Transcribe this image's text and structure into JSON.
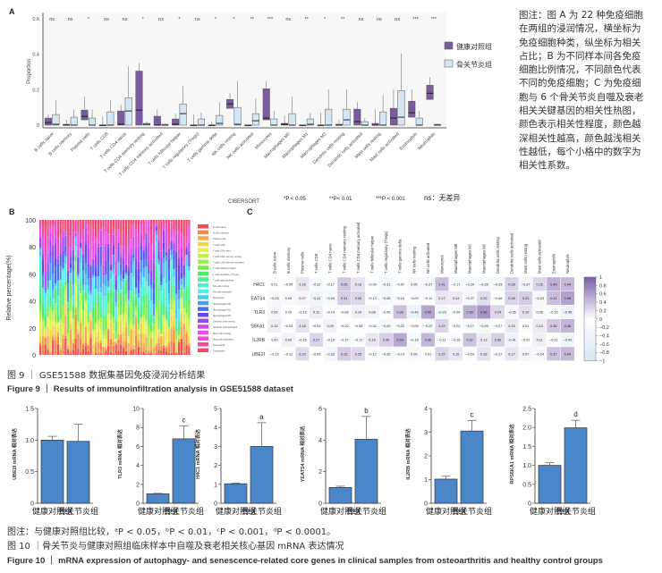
{
  "side_note": "图注：图 A 为 22 种免疫细胞在两组的浸润情况，横坐标为免疫细胞种类，纵坐标为相关占比；B 为不同样本间各免疫细胞比例情况，不同颜色代表不同的免疫细胞；C 为免疫细胞与 6 个骨关节炎自噬及衰老相关关键基因的相关性热图，颜色表示相关性程度，颜色越深相关性越高，颜色越浅相关性越低，每个小格中的数字为相关性系数。",
  "fig9": {
    "cn": "图 9 ｜ GSE51588 数据集基因免疫浸润分析结果",
    "en": "Figure 9  ｜  Results of immunoinfiltration analysis in GSE51588 dataset"
  },
  "fig10": {
    "note": "图注：与健康对照组比较，ᵃP < 0.05，ᵇP < 0.01，ᶜP < 0.001，ᵈP < 0.0001。",
    "cn": "图 10 ｜骨关节炎与健康对照组临床样本中自噬及衰老相关核心基因 mRNA 表达情况",
    "en": "Figure 10  ｜ mRNA expression of autophagy- and senescence-related core genes in clinical samples from osteoarthritis and healthy control groups"
  },
  "colors": {
    "healthy": "#7a5c9e",
    "oa": "#d4e6f4",
    "bar": "#4a86c8",
    "heat_pos": "#7b5ea7",
    "heat_neg": "#d6e6f2"
  },
  "chart_data": [
    {
      "type": "box",
      "panel": "A",
      "ylabel": "Proportion",
      "ylim": [
        0,
        0.6
      ],
      "yticks": [
        "0",
        "0.2",
        "0.4",
        "0.6"
      ],
      "legend": [
        "健康对照组",
        "骨关节炎组"
      ],
      "legend_position": "right",
      "footer": {
        "method": "CIBERSORT",
        "p1": "*P < 0.05",
        "p2": "**P< 0.01",
        "p3": "***P < 0.001",
        "ns": "ns：无差异"
      },
      "categories": [
        "B cells naive",
        "B cells memory",
        "Plasma cells",
        "T cells CD8",
        "T cells CD4 naive",
        "T cells CD4 memory resting",
        "T cells CD4 memory activated",
        "T cells follicular helper",
        "T cells regulatory (Tregs)",
        "T cells gamma delta",
        "NK cells resting",
        "NK cells activated",
        "Monocytes",
        "Macrophages M0",
        "Macrophages M1",
        "Macrophages M2",
        "Dendritic cells resting",
        "Dendritic cells activated",
        "Mast cells resting",
        "Mast cells activated",
        "Eosinophils",
        "Neutrophils"
      ],
      "significance": [
        "ns",
        "ns",
        "*",
        "ns",
        "ns",
        "*",
        "ns",
        "*",
        "ns",
        "*",
        "*",
        "**",
        "***",
        "ns",
        "**",
        "*",
        "**",
        "ns",
        "ns",
        "ns",
        "***",
        "***"
      ],
      "series": [
        {
          "name": "健康对照组",
          "boxes_q1_med_q3_max": [
            [
              0,
              0.015,
              0.04,
              0.06
            ],
            [
              0,
              0,
              0.005,
              0.03
            ],
            [
              0.03,
              0.05,
              0.085,
              0.16
            ],
            [
              0,
              0,
              0,
              0.05
            ],
            [
              0,
              0.005,
              0.08,
              0.115
            ],
            [
              0,
              0.085,
              0.305,
              0.35
            ],
            [
              0,
              0,
              0.05,
              0.09
            ],
            [
              0,
              0.005,
              0.035,
              0.065
            ],
            [
              0,
              0,
              0,
              0.06
            ],
            [
              0,
              0,
              0,
              0.02
            ],
            [
              0.095,
              0.12,
              0.145,
              0.18
            ],
            [
              0,
              0,
              0,
              0
            ],
            [
              0.03,
              0.04,
              0.205,
              0.25
            ],
            [
              0,
              0.005,
              0.01,
              0.055
            ],
            [
              0,
              0,
              0,
              0
            ],
            [
              0,
              0,
              0,
              0.07
            ],
            [
              0,
              0,
              0.005,
              0.03
            ],
            [
              0,
              0.02,
              0.09,
              0.13
            ],
            [
              0,
              0,
              0.01,
              0.09
            ],
            [
              0,
              0.04,
              0.095,
              0.2
            ],
            [
              0.045,
              0.07,
              0.135,
              0.2
            ],
            [
              0.145,
              0.18,
              0.225,
              0.27
            ]
          ]
        },
        {
          "name": "骨关节炎组",
          "boxes_q1_med_q3_max": [
            [
              0,
              0.005,
              0.06,
              0.14
            ],
            [
              0,
              0,
              0.045,
              0.09
            ],
            [
              0,
              0,
              0.04,
              0.09
            ],
            [
              0,
              0,
              0.075,
              0.14
            ],
            [
              0,
              0.08,
              0.155,
              0.33
            ],
            [
              0,
              0.005,
              0.01,
              0.02
            ],
            [
              0,
              0,
              0.005,
              0.01
            ],
            [
              0,
              0.065,
              0.12,
              0.22
            ],
            [
              0,
              0,
              0.035,
              0.07
            ],
            [
              0,
              0.01,
              0.055,
              0.13
            ],
            [
              0,
              0.005,
              0.1,
              0.25
            ],
            [
              0,
              0.025,
              0.065,
              0.15
            ],
            [
              0,
              0,
              0.035,
              0.08
            ],
            [
              0,
              0,
              0.065,
              0.16
            ],
            [
              0,
              0.005,
              0.035,
              0.07
            ],
            [
              0,
              0,
              0.09,
              0.2
            ],
            [
              0,
              0.03,
              0.09,
              0.2
            ],
            [
              0,
              0,
              0.02,
              0.04
            ],
            [
              0,
              0,
              0.075,
              0.17
            ],
            [
              0,
              0.045,
              0.195,
              0.405
            ],
            [
              0,
              0,
              0.04,
              0.08
            ],
            [
              0,
              0,
              0.005,
              0.01
            ]
          ]
        }
      ]
    },
    {
      "type": "stacked-bar",
      "panel": "B",
      "ylabel": "Relative percentage(%)",
      "ylim": [
        0,
        100
      ],
      "yticks": [
        "0",
        "20",
        "40",
        "60",
        "80",
        "100"
      ],
      "samples": 60,
      "seed": 51588,
      "legend_colors": [
        "#f24d4d",
        "#f5874a",
        "#f5aa4a",
        "#f5d24a",
        "#e8f04a",
        "#c8ef4a",
        "#9cf04a",
        "#6ef04a",
        "#4af064",
        "#4af096",
        "#4af0c8",
        "#4af0f0",
        "#4ac8f0",
        "#4a9cf0",
        "#4a6ef0",
        "#644af0",
        "#964af0",
        "#c84af0",
        "#f04af0",
        "#f04ac8",
        "#f04a96",
        "#f04a6e"
      ]
    },
    {
      "type": "heatmap",
      "panel": "C",
      "rows": [
        "H4C1",
        "YEATS4",
        "TLR3",
        "RPS6KA1",
        "IL2RB",
        "UBE2I"
      ],
      "columns": [
        "B cells naive",
        "B cells memory",
        "Plasma cells",
        "T cells CD8",
        "T cells CD4 naive",
        "T cells CD4 memory resting",
        "T cells CD4 memory activated",
        "T cells follicular helper",
        "T cells regulatory (Tregs)",
        "T cells gamma delta",
        "NK cells resting",
        "NK cells activated",
        "Monocytes",
        "Macrophages M0",
        "Macrophages M1",
        "Macrophages M2",
        "Dendritic cells resting",
        "Dendritic cells activated",
        "Mast cells resting",
        "Mast cells activated",
        "Eosinophils",
        "Neutrophils"
      ],
      "values": [
        [
          0.01,
          -0.06,
          0.16,
          -0.22,
          -0.17,
          0.35,
          0.18,
          -0.09,
          -0.31,
          -0.07,
          0.05,
          -0.27,
          0.41,
          -0.17,
          -0.24,
          -0.28,
          -0.29,
          0.28,
          -0.37,
          0.26,
          0.49,
          0.44
        ],
        [
          -0.23,
          0.05,
          0.07,
          -0.41,
          -0.29,
          0.31,
          0.26,
          -0.13,
          -0.28,
          -0.15,
          -0.09,
          -0.11,
          0.17,
          0.14,
          -0.27,
          0.22,
          -0.06,
          0.28,
          0.31,
          -0.23,
          0.41,
          0.58
        ],
        [
          0.06,
          0.0,
          -0.13,
          0.11,
          -0.14,
          -0.08,
          0.1,
          0.08,
          -0.05,
          0.39,
          -0.43,
          0.55,
          -0.23,
          -0.04,
          0.5,
          0.66,
          0.24,
          -0.26,
          0.19,
          0.05,
          -0.15,
          -0.45
        ],
        [
          0.12,
          -0.03,
          0.18,
          -0.04,
          0.09,
          -0.02,
          -0.08,
          -0.02,
          -0.29,
          -0.22,
          -0.05,
          -0.22,
          0.27,
          -0.02,
          -0.17,
          -0.29,
          -0.07,
          0.15,
          0.01,
          0.13,
          0.35,
          0.46
        ],
        [
          0.0,
          0.09,
          -0.15,
          0.27,
          -0.1,
          -0.17,
          -0.11,
          0.16,
          0.3,
          0.54,
          -0.19,
          0.45,
          -0.11,
          -0.15,
          0.37,
          0.13,
          0.3,
          -0.41,
          -0.01,
          0.11,
          -0.11,
          -0.42
        ],
        [
          -0.13,
          -0.12,
          0.23,
          -0.05,
          -0.33,
          0.32,
          0.25,
          -0.12,
          -0.26,
          -0.14,
          0.05,
          0.01,
          0.27,
          0.15,
          -0.14,
          0.18,
          -0.17,
          0.17,
          0.07,
          -0.24,
          0.37,
          0.44
        ]
      ],
      "colorbar_ticks": [
        "1",
        "0.8",
        "0.6",
        "0.4",
        "0.2",
        "0",
        "−0.2",
        "−0.4",
        "−0.6",
        "−0.8",
        "−1"
      ],
      "range": [
        -1,
        1
      ]
    },
    {
      "type": "bar-group",
      "panel": "Figure 10",
      "categories": [
        "健康对照组",
        "骨关节炎组"
      ],
      "charts": [
        {
          "ylabel": "UBE2I mRNA 相对表达",
          "ylim": [
            0,
            1.5
          ],
          "yticks": [
            "0",
            "0.5",
            "1.0",
            "1.5"
          ],
          "values": [
            1.0,
            0.98
          ],
          "errors": [
            0.06,
            0.27
          ],
          "sig": ""
        },
        {
          "ylabel": "TLR3 mRNA 相对表达",
          "ylim": [
            0,
            10
          ],
          "yticks": [
            "0",
            "2",
            "4",
            "6",
            "8",
            "10"
          ],
          "values": [
            1.0,
            6.8
          ],
          "errors": [
            0.05,
            1.35
          ],
          "sig": "c"
        },
        {
          "ylabel": "H4C1 mRNA 相对表达",
          "ylim": [
            0,
            5
          ],
          "yticks": [
            "0",
            "1",
            "2",
            "3",
            "4",
            "5"
          ],
          "values": [
            1.03,
            3.0
          ],
          "errors": [
            0.03,
            1.25
          ],
          "sig": "a"
        },
        {
          "ylabel": "YEATS4 mRNA 相对表达",
          "ylim": [
            0,
            6
          ],
          "yticks": [
            "0",
            "2",
            "4",
            "6"
          ],
          "values": [
            1.0,
            4.05
          ],
          "errors": [
            0.08,
            1.45
          ],
          "sig": "b"
        },
        {
          "ylabel": "IL2RB mRNA 相对表达",
          "ylim": [
            0,
            4
          ],
          "yticks": [
            "0",
            "1",
            "2",
            "3",
            "4"
          ],
          "values": [
            1.02,
            3.05
          ],
          "errors": [
            0.12,
            0.45
          ],
          "sig": "c"
        },
        {
          "ylabel": "RPS6KA1 mRNA 相对表达",
          "ylim": [
            0,
            2.5
          ],
          "yticks": [
            "0",
            "0.5",
            "1.0",
            "1.5",
            "2.0",
            "2.5"
          ],
          "values": [
            1.0,
            1.99
          ],
          "errors": [
            0.07,
            0.2
          ],
          "sig": "d"
        }
      ]
    }
  ]
}
